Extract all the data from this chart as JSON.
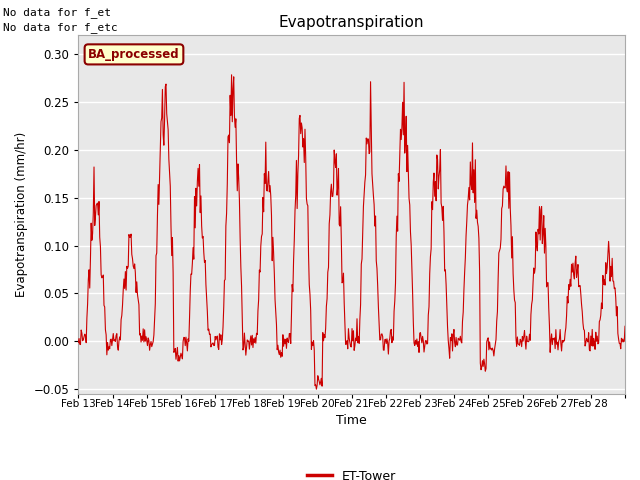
{
  "title": "Evapotranspiration",
  "xlabel": "Time",
  "ylabel": "Evapotranspiration (mm/hr)",
  "top_left_text_line1": "No data for f_et",
  "top_left_text_line2": "No data for f_etc",
  "box_label": "BA_processed",
  "legend_label": "ET-Tower",
  "ylim": [
    -0.055,
    0.32
  ],
  "yticks": [
    -0.05,
    0.0,
    0.05,
    0.1,
    0.15,
    0.2,
    0.25,
    0.3
  ],
  "line_color": "#cc0000",
  "bg_color": "#ffffff",
  "plot_bg_color": "#e8e8e8",
  "grid_color": "#ffffff",
  "box_face_color": "#ffffcc",
  "box_edge_color": "#8b0000",
  "xtick_labels": [
    "Feb 13",
    "Feb 14",
    "Feb 15",
    "Feb 16",
    "Feb 17",
    "Feb 18",
    "Feb 19",
    "Feb 20",
    "Feb 21",
    "Feb 22",
    "Feb 23",
    "Feb 24",
    "Feb 25",
    "Feb 26",
    "Feb 27",
    "Feb 28"
  ],
  "n_days": 16,
  "figwidth": 6.4,
  "figheight": 4.8,
  "dpi": 100
}
